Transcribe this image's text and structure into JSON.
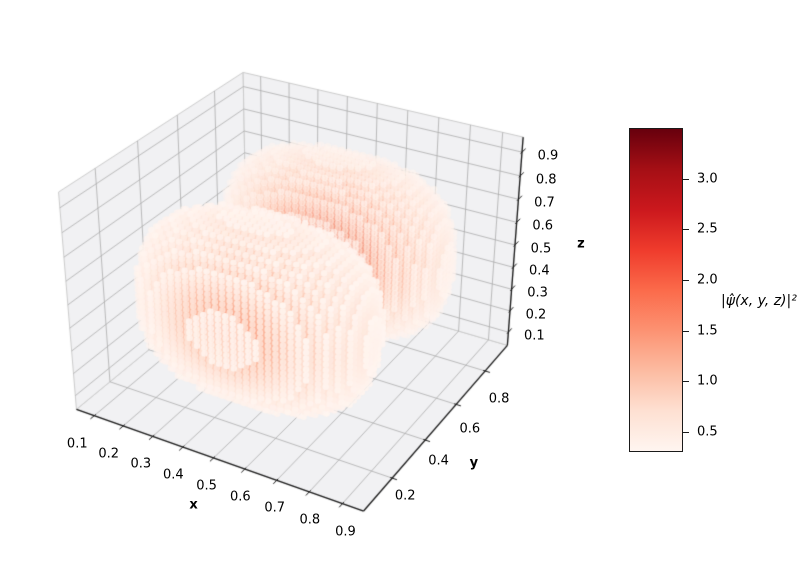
{
  "figure": {
    "background": "#ffffff"
  },
  "chart_data": {
    "type": "scatter",
    "projection": "3d",
    "title": "",
    "xlabel": "x",
    "ylabel": "y",
    "zlabel": "z",
    "x_ticks": [
      0.1,
      0.2,
      0.3,
      0.4,
      0.5,
      0.6,
      0.7,
      0.8,
      0.9
    ],
    "y_ticks": [
      0.2,
      0.4,
      0.6,
      0.8
    ],
    "z_ticks": [
      0.1,
      0.2,
      0.3,
      0.4,
      0.5,
      0.6,
      0.7,
      0.8,
      0.9
    ],
    "axis_limits": {
      "min": 0.0375,
      "max": 0.9625
    },
    "view": {
      "elev": 30,
      "azim": -60,
      "camera_distance": 5,
      "z_aspect": 0.75
    },
    "data_grid": {
      "min": 0.05,
      "max": 0.95,
      "points_per_axis": 40
    },
    "density": {
      "description": "Two-lobe probability density sampled on a cubic grid: f = A*sin^2(pi*u)*sin^2(2*pi*v)*sin^2(pi*w), u/v/w = normalized x/y/z; lobes centered near y=0.275 and y=0.725, x=0.5, z=0.5; only points with f above threshold are drawn",
      "amplitude": 3.5,
      "plot_threshold": 0.3,
      "lobe_centers_y": [
        0.275,
        0.725
      ]
    },
    "color_limits": [
      0.3,
      3.5
    ],
    "colormap": {
      "name": "Reds",
      "stops": [
        "#fff5f0",
        "#fee0d2",
        "#fcbba1",
        "#fc9272",
        "#fb6a4a",
        "#ef3b2c",
        "#cb181d",
        "#a50f15",
        "#67000d"
      ]
    },
    "colorbar": {
      "label": "|ψ̂(x, y, z)|²",
      "ticks": [
        0.5,
        1.0,
        1.5,
        2.0,
        2.5,
        3.0
      ]
    },
    "marker": {
      "shape": "circle",
      "radius_px": 3.2,
      "depthshade": true,
      "alpha_range": [
        0.3,
        1.0
      ]
    },
    "styles": {
      "pane_color": "#f1f1f3",
      "grid_color": "#ababab",
      "pane_edge_color": "#cccccc",
      "axis_line_color": "#1a1a1a",
      "text_color": "#000000"
    }
  }
}
